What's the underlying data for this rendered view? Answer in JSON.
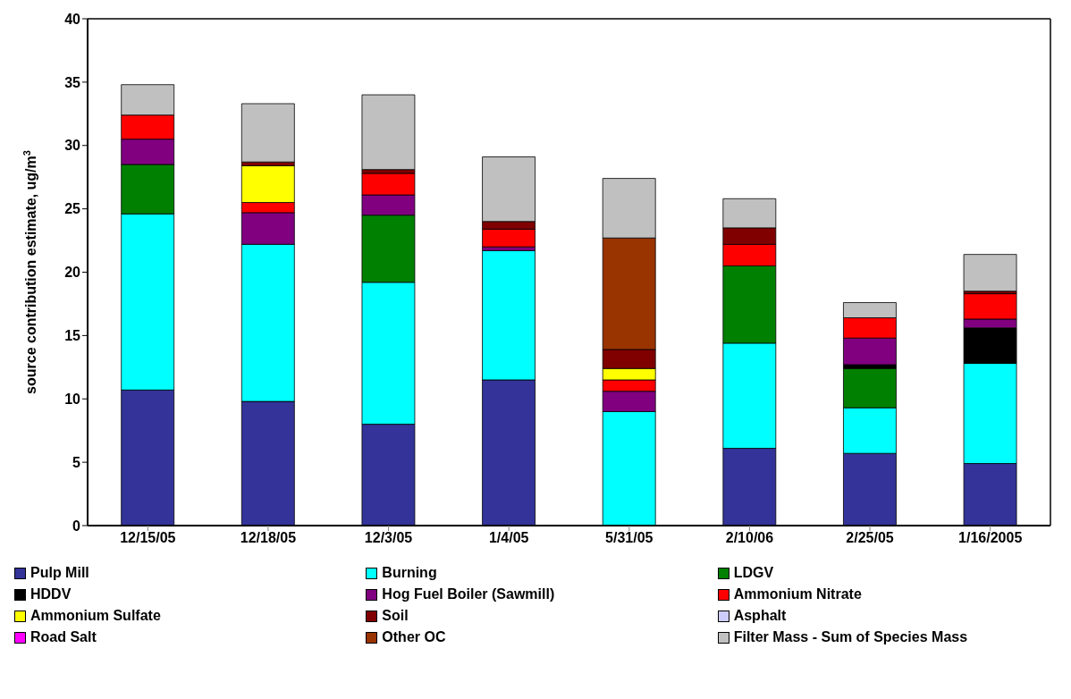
{
  "chart_data": {
    "type": "bar",
    "stacked": true,
    "ylabel": "source contribution estimate, ug/m$^{3}$",
    "categories": [
      "12/15/05",
      "12/18/05",
      "12/3/05",
      "1/4/05",
      "5/31/05",
      "2/10/06",
      "2/25/05",
      "1/16/2005"
    ],
    "ylim": [
      0,
      40
    ],
    "yticks": [
      0,
      5,
      10,
      15,
      20,
      25,
      30,
      35,
      40
    ],
    "grid": false,
    "legend": "bottom",
    "series": [
      {
        "name": "Pulp Mill",
        "color": "#333399",
        "values": [
          10.7,
          9.8,
          8.0,
          11.5,
          0,
          6.1,
          5.7,
          4.9
        ]
      },
      {
        "name": "Burning",
        "color": "#00ffff",
        "values": [
          13.9,
          12.4,
          11.2,
          10.2,
          9.0,
          8.3,
          3.6,
          7.9
        ]
      },
      {
        "name": "LDGV",
        "color": "#008000",
        "values": [
          3.9,
          0,
          5.3,
          0,
          0,
          6.1,
          3.1,
          0
        ]
      },
      {
        "name": "HDDV",
        "color": "#000000",
        "values": [
          0,
          0,
          0,
          0,
          0,
          0,
          0.3,
          2.8
        ]
      },
      {
        "name": "Hog Fuel Boiler (Sawmill)",
        "color": "#800080",
        "values": [
          2.0,
          2.5,
          1.6,
          0.3,
          1.6,
          0,
          2.1,
          0.7
        ]
      },
      {
        "name": "Ammonium Nitrate",
        "color": "#ff0000",
        "values": [
          1.9,
          0.8,
          1.7,
          1.4,
          0.9,
          1.7,
          1.6,
          2.0
        ]
      },
      {
        "name": "Ammonium Sulfate",
        "color": "#ffff00",
        "values": [
          0,
          2.9,
          0,
          0,
          0.9,
          0,
          0,
          0
        ]
      },
      {
        "name": "Soil",
        "color": "#800000",
        "values": [
          0,
          0.3,
          0.3,
          0.6,
          1.5,
          1.3,
          0,
          0.2
        ]
      },
      {
        "name": "Asphalt",
        "color": "#ccccff",
        "values": [
          0,
          0,
          0,
          0,
          0,
          0,
          0,
          0
        ]
      },
      {
        "name": "Road Salt",
        "color": "#ff00ff",
        "values": [
          0,
          0,
          0,
          0,
          0,
          0,
          0,
          0
        ]
      },
      {
        "name": "Other OC",
        "color": "#993300",
        "values": [
          0,
          0,
          0,
          0,
          8.8,
          0,
          0,
          0
        ]
      },
      {
        "name": "Filter Mass - Sum of Species Mass",
        "color": "#c0c0c0",
        "values": [
          2.4,
          4.6,
          5.9,
          5.1,
          4.7,
          2.3,
          1.2,
          2.9
        ]
      }
    ]
  }
}
